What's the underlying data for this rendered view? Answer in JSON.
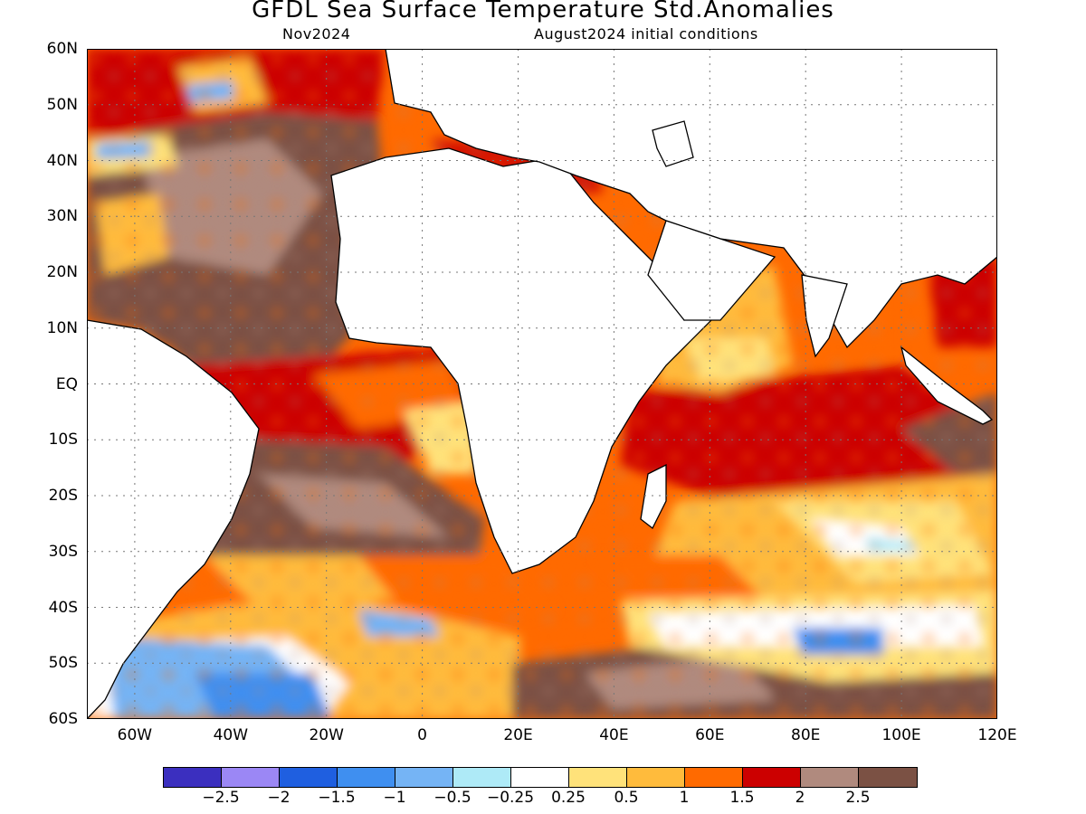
{
  "title": "GFDL Sea Surface Temperature Std.Anomalies",
  "subtitle_left": "Nov2024",
  "subtitle_right": "August2024 initial conditions",
  "map": {
    "lon_range": [
      -70,
      120
    ],
    "lat_range": [
      -60,
      60
    ],
    "grid": "dotted",
    "lat_ticks": [
      "60N",
      "50N",
      "40N",
      "30N",
      "20N",
      "10N",
      "EQ",
      "10S",
      "20S",
      "30S",
      "40S",
      "50S",
      "60S"
    ],
    "lon_ticks": [
      "60W",
      "40W",
      "20W",
      "0",
      "20E",
      "40E",
      "60E",
      "80E",
      "100E",
      "120E"
    ],
    "land_color": "#ffffff",
    "dominant_anomaly": "warm"
  },
  "colorbar": {
    "colors": [
      "#3b2fbf",
      "#9b87f5",
      "#1f5fe0",
      "#3f8ff0",
      "#75b4f5",
      "#aeeaf7",
      "#ffffff",
      "#ffe27a",
      "#ffbb3c",
      "#ff6a00",
      "#cc0000",
      "#b08a7e",
      "#7b5144"
    ],
    "labels": [
      "-2.5",
      "-2",
      "-1.5",
      "-1",
      "-0.5",
      "-0.25",
      "0.25",
      "0.5",
      "1",
      "1.5",
      "2",
      "2.5"
    ]
  }
}
